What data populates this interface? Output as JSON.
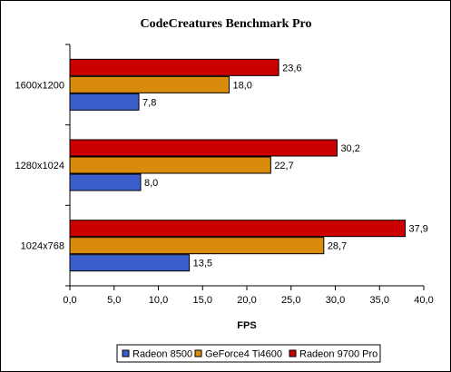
{
  "chart_data": {
    "type": "bar",
    "orientation": "horizontal",
    "title": "CodeCreatures Benchmark Pro",
    "xlabel": "FPS",
    "ylabel": "",
    "categories": [
      "1600x1200",
      "1280x1024",
      "1024x768"
    ],
    "series": [
      {
        "name": "Radeon 8500",
        "color": "#3a5fcd",
        "values": [
          7.8,
          8.0,
          13.5
        ],
        "labels": [
          "7,8",
          "8,0",
          "13,5"
        ]
      },
      {
        "name": "GeForce4 Ti4600",
        "color": "#d98c0c",
        "values": [
          18.0,
          22.7,
          28.7
        ],
        "labels": [
          "18,0",
          "22,7",
          "28,7"
        ]
      },
      {
        "name": "Radeon 9700 Pro",
        "color": "#cc0000",
        "values": [
          23.6,
          30.2,
          37.9
        ],
        "labels": [
          "23,6",
          "30,2",
          "37,9"
        ]
      }
    ],
    "xlim": [
      0,
      40
    ],
    "ticks": [
      "0,0",
      "5,0",
      "10,0",
      "15,0",
      "20,0",
      "25,0",
      "30,0",
      "35,0",
      "40,0"
    ],
    "grid": false,
    "legend_position": "bottom"
  }
}
